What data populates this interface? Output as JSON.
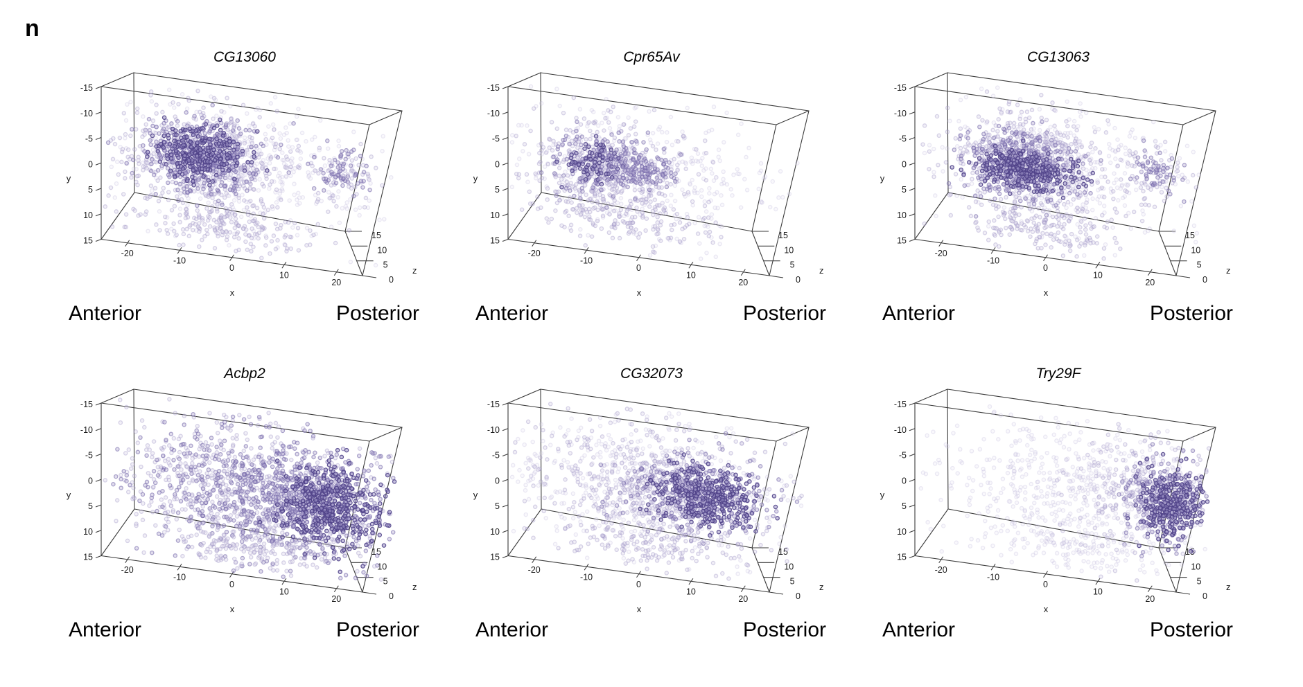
{
  "panel_label": "n",
  "direction_labels": {
    "left": "Anterior",
    "right": "Posterior"
  },
  "axes": {
    "x_label": "x",
    "y_label": "y",
    "z_label": "z",
    "x_ticks": [
      -20,
      -10,
      0,
      10,
      20
    ],
    "y_ticks": [
      -15,
      -10,
      -5,
      0,
      5,
      10,
      15
    ],
    "z_ticks": [
      15,
      10,
      5,
      0
    ],
    "x_range": [
      -25,
      25
    ],
    "y_range": [
      -15,
      15
    ],
    "z_range": [
      0,
      15
    ]
  },
  "point_styles": {
    "dark": {
      "stroke": "#4e4187",
      "stroke_op": 0.88,
      "fill": "#9d93c6",
      "fill_op": 0.55
    },
    "med": {
      "stroke": "#6f63a6",
      "stroke_op": 0.55,
      "fill": "#b3abd3",
      "fill_op": 0.4
    },
    "light": {
      "stroke": "#9a90c2",
      "stroke_op": 0.38,
      "fill": "#cfcae3",
      "fill_op": 0.3
    },
    "faint": {
      "stroke": "#bab3d7",
      "stroke_op": 0.28,
      "fill": "#e3e0f0",
      "fill_op": 0.22
    }
  },
  "wireframe_color": "#3a3a3a",
  "chart_data": [
    {
      "type": "scatter3d",
      "title": "CG13060",
      "seed": 11,
      "expression_pattern": "dense anterior-dorsal cluster with small posterior spot",
      "layers": [
        {
          "tier": "faint",
          "n": 380,
          "c": [
            0,
            -1,
            7
          ],
          "s": [
            11,
            6,
            4
          ]
        },
        {
          "tier": "light",
          "n": 520,
          "c": [
            -8,
            -2,
            7
          ],
          "s": [
            7.5,
            5,
            4
          ]
        },
        {
          "tier": "med",
          "n": 400,
          "c": [
            -9,
            -2.5,
            7
          ],
          "s": [
            5,
            3.5,
            3.5
          ]
        },
        {
          "tier": "dark",
          "n": 260,
          "c": [
            -9,
            -3,
            7
          ],
          "s": [
            3.8,
            2.6,
            3
          ]
        },
        {
          "tier": "light",
          "n": 60,
          "c": [
            17,
            -3,
            8
          ],
          "s": [
            3.5,
            3,
            3
          ]
        },
        {
          "tier": "med",
          "n": 60,
          "c": [
            17,
            -3.5,
            8
          ],
          "s": [
            2.4,
            2,
            2.4
          ]
        },
        {
          "tier": "light",
          "n": 190,
          "c": [
            -4,
            10.5,
            7
          ],
          "s": [
            8,
            2.2,
            4
          ]
        }
      ]
    },
    {
      "type": "scatter3d",
      "title": "Cpr65Av",
      "seed": 23,
      "expression_pattern": "sparse anterior expression with scattered dark cells",
      "layers": [
        {
          "tier": "faint",
          "n": 360,
          "c": [
            -2,
            0,
            7
          ],
          "s": [
            11,
            6,
            4
          ]
        },
        {
          "tier": "light",
          "n": 400,
          "c": [
            -10,
            0,
            7
          ],
          "s": [
            7,
            4.5,
            4
          ]
        },
        {
          "tier": "med",
          "n": 150,
          "c": [
            -11,
            -0.5,
            7
          ],
          "s": [
            4.5,
            3,
            3.5
          ]
        },
        {
          "tier": "dark",
          "n": 70,
          "c": [
            -12.5,
            -0.5,
            7
          ],
          "s": [
            2.6,
            2.2,
            2.5
          ]
        },
        {
          "tier": "med",
          "n": 90,
          "c": [
            -4,
            -1.5,
            7
          ],
          "s": [
            2.8,
            2,
            2.5
          ]
        },
        {
          "tier": "med",
          "n": 40,
          "c": [
            0.5,
            -0.5,
            7
          ],
          "s": [
            1.8,
            1.6,
            2
          ]
        },
        {
          "tier": "light",
          "n": 150,
          "c": [
            -5,
            9.5,
            7
          ],
          "s": [
            8,
            2.2,
            4
          ]
        }
      ]
    },
    {
      "type": "scatter3d",
      "title": "CG13063",
      "seed": 37,
      "expression_pattern": "dense anterior band with small posterior spot",
      "layers": [
        {
          "tier": "faint",
          "n": 380,
          "c": [
            0,
            -1,
            7
          ],
          "s": [
            11,
            6,
            4
          ]
        },
        {
          "tier": "light",
          "n": 520,
          "c": [
            -7,
            -1.5,
            7
          ],
          "s": [
            7.5,
            5,
            4
          ]
        },
        {
          "tier": "med",
          "n": 380,
          "c": [
            -7.5,
            -1,
            7
          ],
          "s": [
            5,
            3.2,
            3.5
          ]
        },
        {
          "tier": "dark",
          "n": 280,
          "c": [
            -7,
            0,
            7
          ],
          "s": [
            4.6,
            1.7,
            3
          ]
        },
        {
          "tier": "light",
          "n": 55,
          "c": [
            17,
            -2.5,
            8
          ],
          "s": [
            3.5,
            3,
            3
          ]
        },
        {
          "tier": "med",
          "n": 55,
          "c": [
            17,
            -3,
            8
          ],
          "s": [
            2.4,
            2,
            2.4
          ]
        },
        {
          "tier": "light",
          "n": 180,
          "c": [
            -3,
            10.5,
            7
          ],
          "s": [
            8,
            2.2,
            4
          ]
        }
      ]
    },
    {
      "type": "scatter3d",
      "title": "Acbp2",
      "seed": 51,
      "expression_pattern": "broad expression with dense posterior cluster",
      "layers": [
        {
          "tier": "light",
          "n": 650,
          "c": [
            -2,
            0,
            7.5
          ],
          "s": [
            12,
            6.5,
            4.2
          ]
        },
        {
          "tier": "med",
          "n": 600,
          "c": [
            2,
            0,
            7.5
          ],
          "s": [
            11,
            6,
            4.2
          ]
        },
        {
          "tier": "med",
          "n": 320,
          "c": [
            12,
            0,
            7.5
          ],
          "s": [
            6,
            4.5,
            3.8
          ]
        },
        {
          "tier": "dark",
          "n": 430,
          "c": [
            15,
            1,
            7.5
          ],
          "s": [
            4.6,
            4,
            3.4
          ]
        },
        {
          "tier": "light",
          "n": 150,
          "c": [
            0,
            11,
            7.5
          ],
          "s": [
            9,
            2,
            4
          ]
        }
      ]
    },
    {
      "type": "scatter3d",
      "title": "CG32073",
      "seed": 67,
      "expression_pattern": "broad expression with dense central-posterior cluster",
      "layers": [
        {
          "tier": "faint",
          "n": 480,
          "c": [
            -2,
            -1,
            7.5
          ],
          "s": [
            12,
            6.2,
            4.2
          ]
        },
        {
          "tier": "light",
          "n": 480,
          "c": [
            1,
            -1,
            7.5
          ],
          "s": [
            11,
            5.8,
            4.2
          ]
        },
        {
          "tier": "med",
          "n": 360,
          "c": [
            8,
            -0.5,
            7.5
          ],
          "s": [
            6,
            3.6,
            3.8
          ]
        },
        {
          "tier": "dark",
          "n": 320,
          "c": [
            9.5,
            0,
            7.5
          ],
          "s": [
            4.8,
            2.8,
            3.4
          ]
        },
        {
          "tier": "light",
          "n": 160,
          "c": [
            0,
            10.5,
            7.5
          ],
          "s": [
            9,
            2.2,
            4
          ]
        }
      ]
    },
    {
      "type": "scatter3d",
      "title": "Try29F",
      "seed": 83,
      "expression_pattern": "sparse expression with dense far-posterior cluster",
      "layers": [
        {
          "tier": "faint",
          "n": 520,
          "c": [
            2,
            -1,
            7.5
          ],
          "s": [
            12.5,
            6.5,
            4.2
          ]
        },
        {
          "tier": "light",
          "n": 260,
          "c": [
            15,
            -2,
            7.5
          ],
          "s": [
            6,
            5.5,
            4
          ]
        },
        {
          "tier": "med",
          "n": 220,
          "c": [
            19,
            -1,
            7.5
          ],
          "s": [
            3.8,
            4,
            3.4
          ]
        },
        {
          "tier": "dark",
          "n": 260,
          "c": [
            20,
            0,
            8
          ],
          "s": [
            3,
            3.4,
            3
          ]
        },
        {
          "tier": "faint",
          "n": 140,
          "c": [
            2,
            10.5,
            7.5
          ],
          "s": [
            9,
            2.2,
            4
          ]
        }
      ]
    }
  ]
}
